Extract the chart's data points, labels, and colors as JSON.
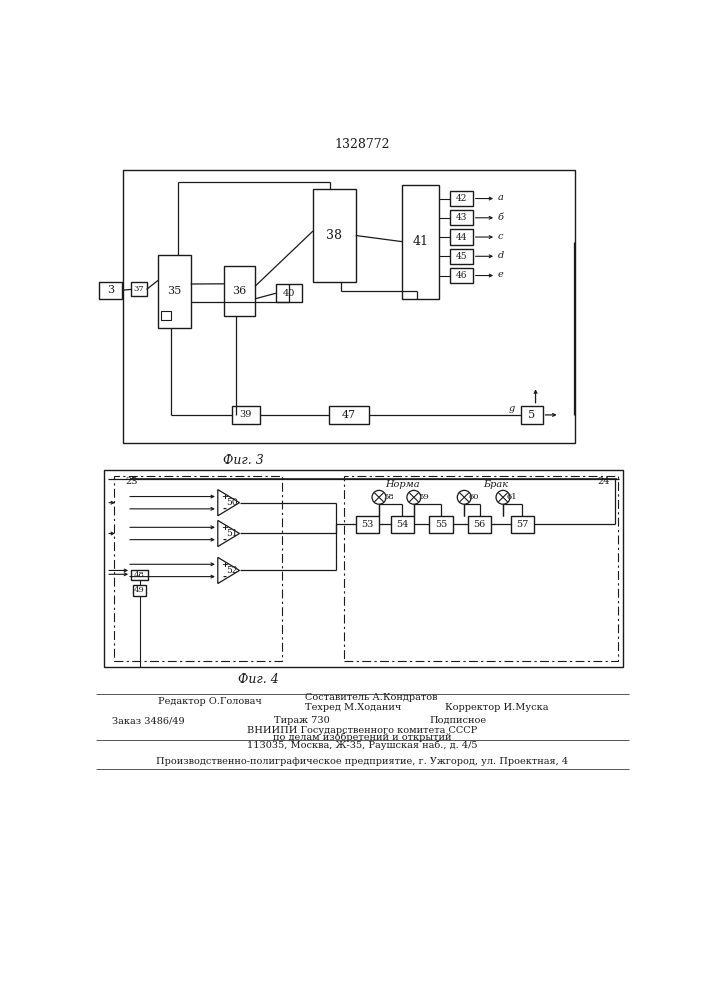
{
  "title": "1328772",
  "fig3_label": "Фиг. 3",
  "fig4_label": "Фиг. 4",
  "line_color": "#1a1a1a",
  "footer": {
    "editor": "Редактор О.Головач",
    "composer": "Составитель А.Кондратов",
    "techred": "Техред М.Ходанич",
    "corrector": "Корректор И.Муска",
    "order": "Заказ 3486/49",
    "tirazh": "Тираж 730",
    "podpisnoe": "Подписное",
    "vniipii1": "ВНИИПИ Государственного комитета СССР",
    "vniipii2": "по делам изобретений и открытий",
    "vniipii3": "113035, Москва, Ж-35, Раушская наб., д. 4/5",
    "producer": "Производственно-полиграфическое предприятие, г. Ужгород, ул. Проектная, 4"
  }
}
